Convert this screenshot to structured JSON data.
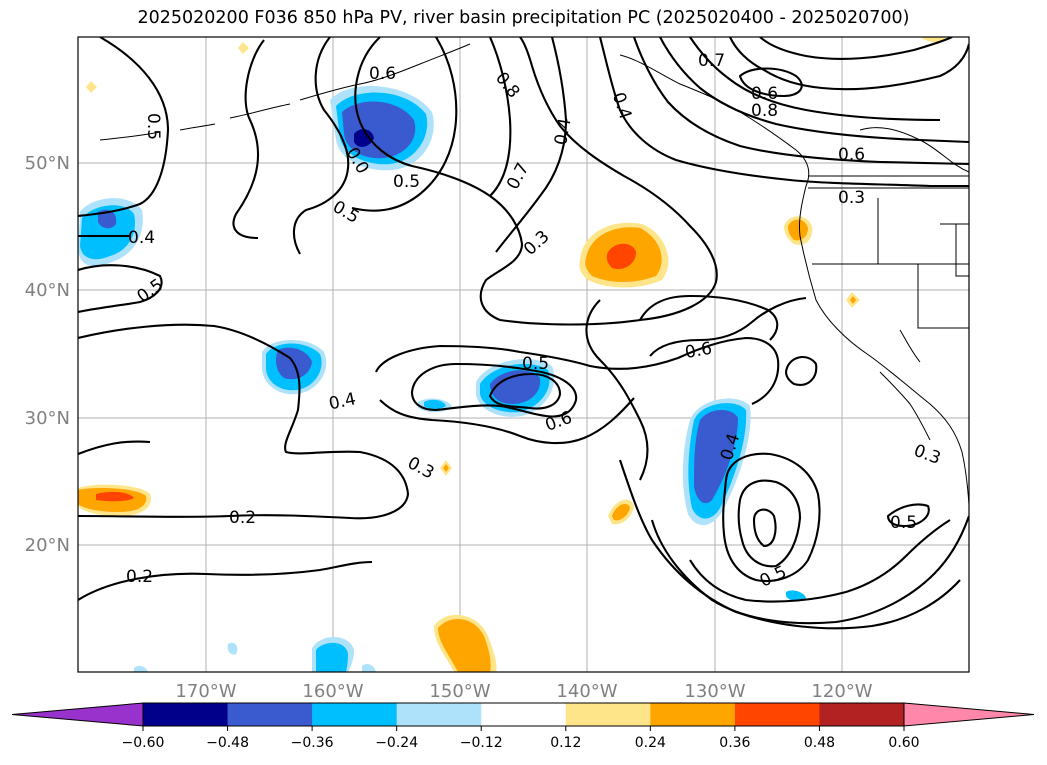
{
  "title": "2025020200 F036 850 hPa PV, river basin precipitation PC (2025020400 - 2025020700)",
  "lat_labels": [
    "50°N",
    "40°N",
    "30°N",
    "20°N"
  ],
  "lon_labels": [
    "170°W",
    "160°W",
    "150°W",
    "140°W",
    "130°W",
    "120°W"
  ],
  "contour_labels": [
    "0.6",
    "0.8",
    "0.7",
    "0.6",
    "0.8",
    "0.4",
    "0.4",
    "0.5",
    "0.0",
    "0.5",
    "0.7",
    "0.6",
    "0.3",
    "0.5",
    "0.3",
    "0.4",
    "0.5",
    "0.6",
    "0.5",
    "0.4",
    "0.6",
    "0.3",
    "0.4",
    "0.3",
    "0.5",
    "0.2",
    "0.2",
    "0.5"
  ],
  "colorbar": {
    "ticks": [
      "−0.60",
      "−0.48",
      "−0.36",
      "−0.24",
      "−0.12",
      "0.12",
      "0.24",
      "0.36",
      "0.48",
      "0.60"
    ],
    "colors": [
      "#9932cc",
      "#00008b",
      "#3a5bd0",
      "#00bfff",
      "#aee2fa",
      "#ffffff",
      "#ffe58a",
      "#ffa500",
      "#ff4500",
      "#b22222",
      "#ff88aa"
    ]
  },
  "colors": {
    "title": "#000000",
    "axis_label": "#808080",
    "grid": "#b0b0b0"
  }
}
